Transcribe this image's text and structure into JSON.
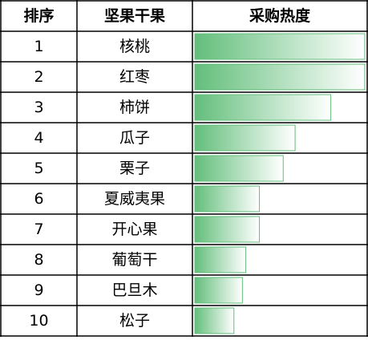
{
  "chart_data": {
    "type": "bar",
    "headers": [
      "排序",
      "坚果干果",
      "采购热度"
    ],
    "ranks": [
      1,
      2,
      3,
      4,
      5,
      6,
      7,
      8,
      9,
      10
    ],
    "categories": [
      "核桃",
      "红枣",
      "柿饼",
      "瓜子",
      "栗子",
      "夏威夷果",
      "开心果",
      "葡萄干",
      "巴旦木",
      "松子"
    ],
    "values": [
      100,
      100,
      80,
      59,
      52,
      38,
      38,
      30,
      28,
      23
    ],
    "xlim": [
      0,
      100
    ],
    "color": "#63be7b"
  }
}
